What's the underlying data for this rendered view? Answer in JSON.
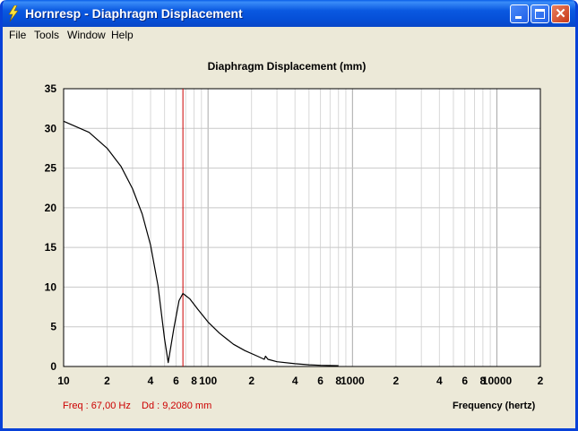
{
  "window": {
    "title": "Hornresp - Diaphragm Displacement"
  },
  "menu": [
    "File",
    "Tools",
    "Window",
    "Help"
  ],
  "chart_data": {
    "type": "line",
    "title": "Diaphragm Displacement (mm)",
    "xlabel": "Frequency (hertz)",
    "ylabel": "",
    "xscale": "log",
    "xlim": [
      10,
      20000
    ],
    "ylim": [
      0,
      35
    ],
    "yticks": [
      0,
      5,
      10,
      15,
      20,
      25,
      30,
      35
    ],
    "xtick_labels": [
      {
        "x": 10,
        "label": "10"
      },
      {
        "x": 20,
        "label": "2"
      },
      {
        "x": 40,
        "label": "4"
      },
      {
        "x": 60,
        "label": "6"
      },
      {
        "x": 80,
        "label": "8"
      },
      {
        "x": 100,
        "label": "100"
      },
      {
        "x": 200,
        "label": "2"
      },
      {
        "x": 400,
        "label": "4"
      },
      {
        "x": 600,
        "label": "6"
      },
      {
        "x": 800,
        "label": "8"
      },
      {
        "x": 1000,
        "label": "1000"
      },
      {
        "x": 2000,
        "label": "2"
      },
      {
        "x": 4000,
        "label": "4"
      },
      {
        "x": 6000,
        "label": "6"
      },
      {
        "x": 8000,
        "label": "8"
      },
      {
        "x": 10000,
        "label": "10000"
      },
      {
        "x": 20000,
        "label": "2"
      }
    ],
    "grid": true,
    "series": [
      {
        "color": "#000000",
        "x": [
          10,
          15,
          20,
          25,
          30,
          35,
          40,
          45,
          50,
          53,
          58,
          63,
          67,
          75,
          85,
          100,
          120,
          150,
          180,
          220,
          245,
          250,
          260,
          300,
          400,
          500,
          600,
          800
        ],
        "y": [
          30.9,
          29.5,
          27.5,
          25.2,
          22.4,
          19.2,
          15.3,
          10.2,
          3.5,
          0.5,
          4.8,
          8.3,
          9.2,
          8.5,
          7.2,
          5.6,
          4.2,
          2.8,
          2.0,
          1.3,
          0.9,
          1.3,
          0.9,
          0.6,
          0.35,
          0.22,
          0.15,
          0.1
        ]
      }
    ],
    "marker": {
      "x": 67,
      "color": "#cc0000"
    }
  },
  "status": {
    "freq": "Freq : 67,00 Hz",
    "dd": "Dd : 9,2080 mm"
  }
}
